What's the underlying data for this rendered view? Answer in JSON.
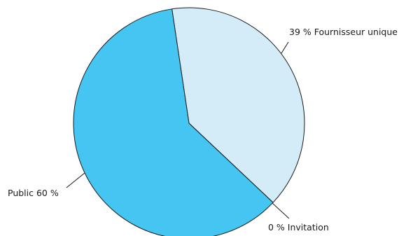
{
  "chart_data": {
    "type": "pie",
    "slices": [
      {
        "label": "39 % Fournisseur unique",
        "value": 39,
        "color": "#d3ecf8"
      },
      {
        "label": "0 % Invitation",
        "value": 0,
        "color": "#bde6f7"
      },
      {
        "label": "Public 60 %",
        "value": 60,
        "color": "#45c6f2"
      }
    ],
    "title": "",
    "legend": "none"
  }
}
